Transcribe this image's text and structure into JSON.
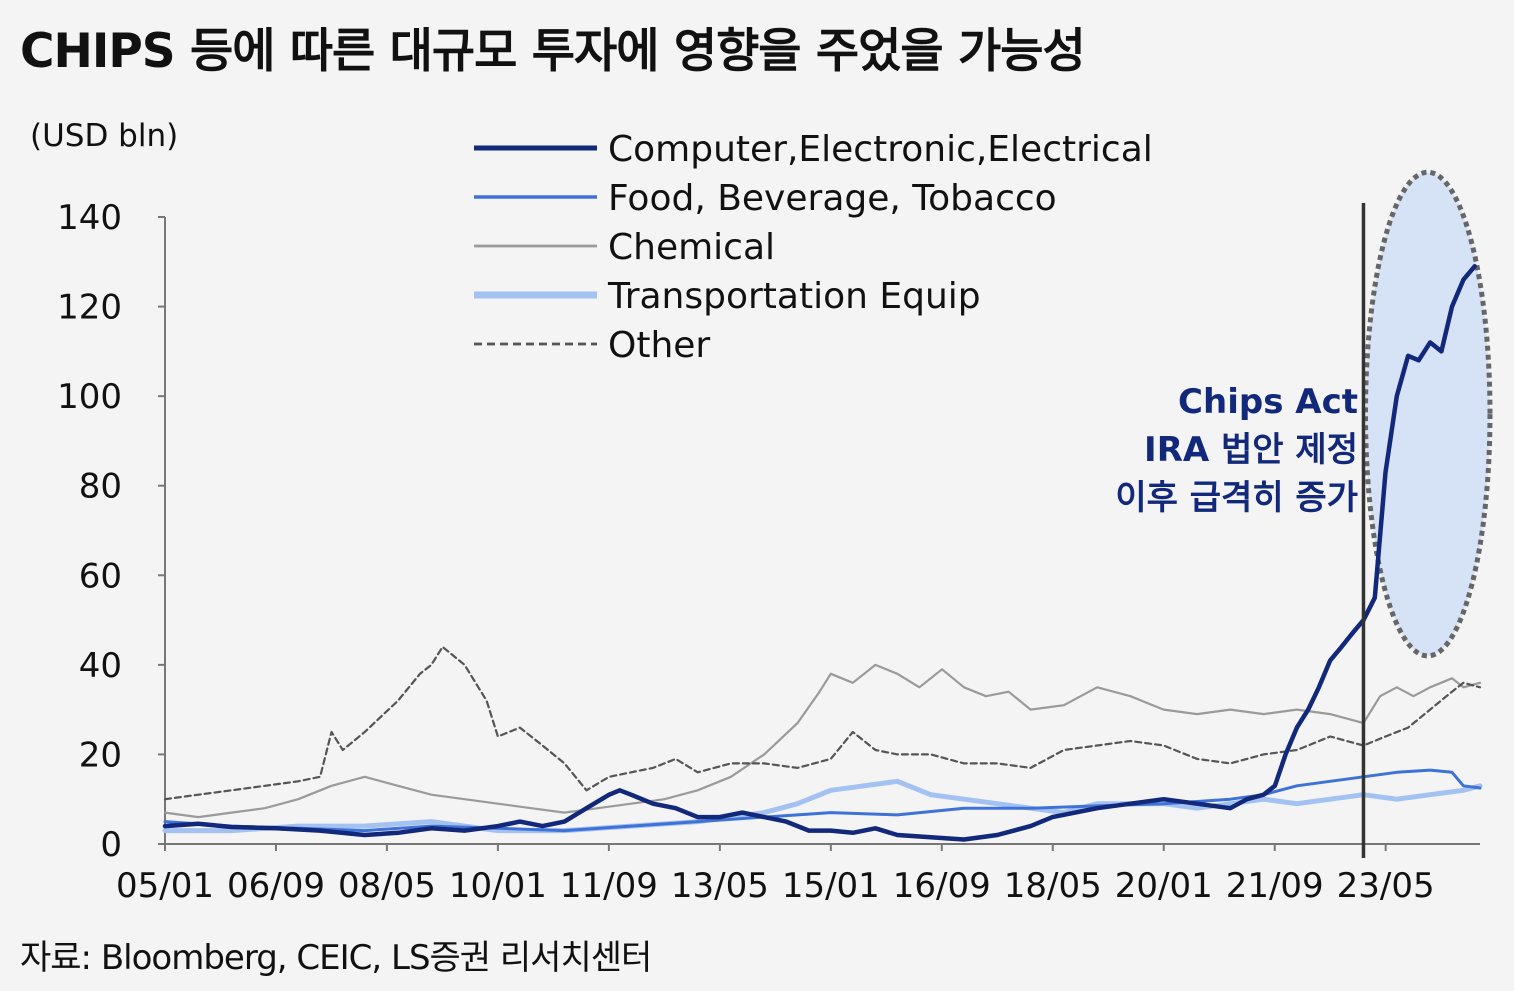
{
  "page": {
    "title": "CHIPS 등에 따른 대규모 투자에 영향을 주었을 가능성",
    "unit": "(USD bln)",
    "source": "자료: Bloomberg, CEIC, LS증권 리서치센터"
  },
  "chart_data": {
    "type": "line",
    "title": "CHIPS 등에 따른 대규모 투자에 영향을 주었을 가능성",
    "ylabel": "(USD bln)",
    "xlabel": "",
    "ylim": [
      0,
      140
    ],
    "yticks": [
      0,
      20,
      40,
      60,
      80,
      100,
      120,
      140
    ],
    "xlim": [
      2005.0,
      2024.75
    ],
    "xticks": [
      "05/01",
      "06/09",
      "08/05",
      "10/01",
      "11/09",
      "13/05",
      "15/01",
      "16/09",
      "18/05",
      "20/01",
      "21/09",
      "23/05"
    ],
    "legend_position": "top-center",
    "grid": false,
    "colors": {
      "computer": "#12287a",
      "food": "#3e72d6",
      "chemical": "#9a9a9a",
      "transport": "#a3c2f2",
      "other": "#555555",
      "annotation": "#12287a",
      "highlight_fill": "#d6e3f6",
      "highlight_border": "#666666",
      "event_line": "#333333"
    },
    "series": [
      {
        "name": "Computer,Electronic,Electrical",
        "style": "solid-thick",
        "color": "#12287a",
        "points": [
          [
            2005.0,
            4
          ],
          [
            2005.5,
            4.5
          ],
          [
            2006.0,
            3.8
          ],
          [
            2006.67,
            3.5
          ],
          [
            2007.33,
            3
          ],
          [
            2008.0,
            2
          ],
          [
            2008.5,
            2.5
          ],
          [
            2009.0,
            3.5
          ],
          [
            2009.5,
            3
          ],
          [
            2010.0,
            4
          ],
          [
            2010.33,
            5
          ],
          [
            2010.67,
            4
          ],
          [
            2011.0,
            5
          ],
          [
            2011.33,
            8
          ],
          [
            2011.67,
            11
          ],
          [
            2011.83,
            12
          ],
          [
            2012.0,
            11
          ],
          [
            2012.33,
            9
          ],
          [
            2012.67,
            8
          ],
          [
            2013.0,
            6
          ],
          [
            2013.33,
            6
          ],
          [
            2013.67,
            7
          ],
          [
            2014.0,
            6
          ],
          [
            2014.33,
            5
          ],
          [
            2014.67,
            3
          ],
          [
            2015.0,
            3
          ],
          [
            2015.33,
            2.5
          ],
          [
            2015.67,
            3.5
          ],
          [
            2016.0,
            2
          ],
          [
            2016.5,
            1.5
          ],
          [
            2017.0,
            1
          ],
          [
            2017.5,
            2
          ],
          [
            2018.0,
            4
          ],
          [
            2018.33,
            6
          ],
          [
            2018.67,
            7
          ],
          [
            2019.0,
            8
          ],
          [
            2019.5,
            9
          ],
          [
            2020.0,
            10
          ],
          [
            2020.5,
            9
          ],
          [
            2021.0,
            8
          ],
          [
            2021.25,
            10
          ],
          [
            2021.5,
            11
          ],
          [
            2021.67,
            13
          ],
          [
            2021.83,
            20
          ],
          [
            2022.0,
            26
          ],
          [
            2022.17,
            30
          ],
          [
            2022.33,
            35
          ],
          [
            2022.5,
            41
          ],
          [
            2022.67,
            44
          ],
          [
            2022.83,
            47
          ],
          [
            2023.0,
            50
          ],
          [
            2023.17,
            55
          ],
          [
            2023.33,
            83
          ],
          [
            2023.5,
            100
          ],
          [
            2023.67,
            109
          ],
          [
            2023.83,
            108
          ],
          [
            2024.0,
            112
          ],
          [
            2024.17,
            110
          ],
          [
            2024.33,
            120
          ],
          [
            2024.5,
            126
          ],
          [
            2024.67,
            129
          ]
        ]
      },
      {
        "name": "Food, Beverage, Tobacco",
        "style": "solid",
        "color": "#3e72d6",
        "points": [
          [
            2005.0,
            5
          ],
          [
            2006.0,
            4
          ],
          [
            2007.0,
            3.5
          ],
          [
            2008.0,
            3
          ],
          [
            2009.0,
            4
          ],
          [
            2010.0,
            3.5
          ],
          [
            2011.0,
            3
          ],
          [
            2012.0,
            4
          ],
          [
            2013.0,
            5
          ],
          [
            2014.0,
            6
          ],
          [
            2015.0,
            7
          ],
          [
            2016.0,
            6.5
          ],
          [
            2017.0,
            8
          ],
          [
            2018.0,
            8
          ],
          [
            2019.0,
            8.5
          ],
          [
            2020.0,
            9
          ],
          [
            2021.0,
            10
          ],
          [
            2021.5,
            11
          ],
          [
            2022.0,
            13
          ],
          [
            2022.5,
            14
          ],
          [
            2023.0,
            15
          ],
          [
            2023.5,
            16
          ],
          [
            2024.0,
            16.5
          ],
          [
            2024.33,
            16
          ],
          [
            2024.5,
            13
          ],
          [
            2024.75,
            12.5
          ]
        ]
      },
      {
        "name": "Chemical",
        "style": "solid-thin",
        "color": "#9a9a9a",
        "points": [
          [
            2005.0,
            7
          ],
          [
            2005.5,
            6
          ],
          [
            2006.0,
            7
          ],
          [
            2006.5,
            8
          ],
          [
            2007.0,
            10
          ],
          [
            2007.5,
            13
          ],
          [
            2008.0,
            15
          ],
          [
            2008.5,
            13
          ],
          [
            2009.0,
            11
          ],
          [
            2009.5,
            10
          ],
          [
            2010.0,
            9
          ],
          [
            2010.5,
            8
          ],
          [
            2011.0,
            7
          ],
          [
            2011.5,
            8
          ],
          [
            2012.0,
            9
          ],
          [
            2012.5,
            10
          ],
          [
            2013.0,
            12
          ],
          [
            2013.5,
            15
          ],
          [
            2014.0,
            20
          ],
          [
            2014.5,
            27
          ],
          [
            2014.83,
            34
          ],
          [
            2015.0,
            38
          ],
          [
            2015.33,
            36
          ],
          [
            2015.67,
            40
          ],
          [
            2016.0,
            38
          ],
          [
            2016.33,
            35
          ],
          [
            2016.67,
            39
          ],
          [
            2017.0,
            35
          ],
          [
            2017.33,
            33
          ],
          [
            2017.67,
            34
          ],
          [
            2018.0,
            30
          ],
          [
            2018.5,
            31
          ],
          [
            2019.0,
            35
          ],
          [
            2019.5,
            33
          ],
          [
            2020.0,
            30
          ],
          [
            2020.5,
            29
          ],
          [
            2021.0,
            30
          ],
          [
            2021.5,
            29
          ],
          [
            2022.0,
            30
          ],
          [
            2022.5,
            29
          ],
          [
            2023.0,
            27
          ],
          [
            2023.25,
            33
          ],
          [
            2023.5,
            35
          ],
          [
            2023.75,
            33
          ],
          [
            2024.0,
            35
          ],
          [
            2024.33,
            37
          ],
          [
            2024.5,
            35
          ],
          [
            2024.75,
            36
          ]
        ]
      },
      {
        "name": "Transportation Equip",
        "style": "solid-thick",
        "color": "#a3c2f2",
        "points": [
          [
            2005.0,
            3
          ],
          [
            2006.0,
            3
          ],
          [
            2007.0,
            4
          ],
          [
            2008.0,
            4
          ],
          [
            2009.0,
            5
          ],
          [
            2010.0,
            3
          ],
          [
            2011.0,
            3
          ],
          [
            2012.0,
            4
          ],
          [
            2013.0,
            5
          ],
          [
            2014.0,
            7
          ],
          [
            2014.5,
            9
          ],
          [
            2015.0,
            12
          ],
          [
            2015.5,
            13
          ],
          [
            2016.0,
            14
          ],
          [
            2016.5,
            11
          ],
          [
            2017.0,
            10
          ],
          [
            2017.5,
            9
          ],
          [
            2018.0,
            8
          ],
          [
            2018.5,
            7
          ],
          [
            2019.0,
            9
          ],
          [
            2019.5,
            9
          ],
          [
            2020.0,
            9
          ],
          [
            2020.5,
            8
          ],
          [
            2021.0,
            9
          ],
          [
            2021.5,
            10
          ],
          [
            2022.0,
            9
          ],
          [
            2022.5,
            10
          ],
          [
            2023.0,
            11
          ],
          [
            2023.5,
            10
          ],
          [
            2024.0,
            11
          ],
          [
            2024.5,
            12
          ],
          [
            2024.75,
            13
          ]
        ]
      },
      {
        "name": "Other",
        "style": "dashed",
        "color": "#555555",
        "points": [
          [
            2005.0,
            10
          ],
          [
            2005.5,
            11
          ],
          [
            2006.0,
            12
          ],
          [
            2006.5,
            13
          ],
          [
            2007.0,
            14
          ],
          [
            2007.33,
            15
          ],
          [
            2007.5,
            25
          ],
          [
            2007.67,
            21
          ],
          [
            2008.0,
            25
          ],
          [
            2008.5,
            32
          ],
          [
            2008.83,
            38
          ],
          [
            2009.0,
            40
          ],
          [
            2009.17,
            44
          ],
          [
            2009.5,
            40
          ],
          [
            2009.83,
            32
          ],
          [
            2010.0,
            24
          ],
          [
            2010.33,
            26
          ],
          [
            2010.67,
            22
          ],
          [
            2011.0,
            18
          ],
          [
            2011.33,
            12
          ],
          [
            2011.67,
            15
          ],
          [
            2012.0,
            16
          ],
          [
            2012.33,
            17
          ],
          [
            2012.67,
            19
          ],
          [
            2013.0,
            16
          ],
          [
            2013.5,
            18
          ],
          [
            2014.0,
            18
          ],
          [
            2014.5,
            17
          ],
          [
            2015.0,
            19
          ],
          [
            2015.33,
            25
          ],
          [
            2015.67,
            21
          ],
          [
            2016.0,
            20
          ],
          [
            2016.5,
            20
          ],
          [
            2017.0,
            18
          ],
          [
            2017.5,
            18
          ],
          [
            2018.0,
            17
          ],
          [
            2018.5,
            21
          ],
          [
            2019.0,
            22
          ],
          [
            2019.5,
            23
          ],
          [
            2020.0,
            22
          ],
          [
            2020.5,
            19
          ],
          [
            2021.0,
            18
          ],
          [
            2021.5,
            20
          ],
          [
            2022.0,
            21
          ],
          [
            2022.5,
            24
          ],
          [
            2023.0,
            22
          ],
          [
            2023.33,
            24
          ],
          [
            2023.67,
            26
          ],
          [
            2024.0,
            30
          ],
          [
            2024.33,
            34
          ],
          [
            2024.5,
            36
          ],
          [
            2024.75,
            35
          ]
        ]
      }
    ],
    "event_line_x": 2023.0,
    "annotation": {
      "lines": [
        "Chips Act",
        "IRA 법안 제정",
        "이후 급격히 증가"
      ]
    },
    "highlight": {
      "x_range": [
        2023.0,
        2024.9
      ],
      "y_range": [
        42,
        150
      ]
    }
  }
}
